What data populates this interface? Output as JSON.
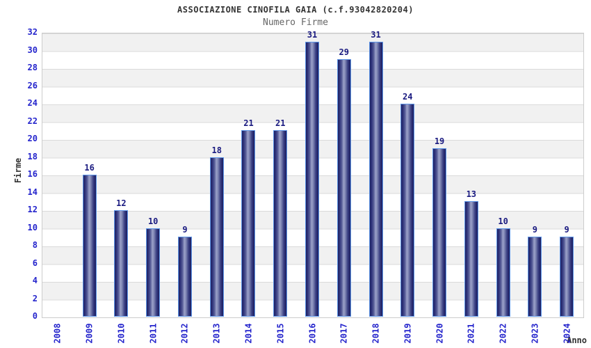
{
  "chart_data": {
    "type": "bar",
    "title": "ASSOCIAZIONE CINOFILA GAIA (c.f.93042820204)",
    "subtitle": "Numero Firme",
    "xlabel": "Anno",
    "ylabel": "Firme",
    "categories": [
      "2008",
      "2009",
      "2010",
      "2011",
      "2012",
      "2013",
      "2014",
      "2015",
      "2016",
      "2017",
      "2018",
      "2019",
      "2020",
      "2021",
      "2022",
      "2023",
      "2024"
    ],
    "values": [
      0,
      16,
      12,
      10,
      9,
      18,
      21,
      21,
      31,
      29,
      31,
      24,
      19,
      13,
      10,
      9,
      9
    ],
    "ylim": [
      0,
      32
    ],
    "ytick_step": 2,
    "grid": "horizontal gridlines with alternating gray/white bands",
    "legend": "none",
    "colors": {
      "bar_edge_dark": "#1f2262",
      "bar_center_light": "#9ba1c9",
      "bar_border": "#5e96e8",
      "value_label": "#1a1a80",
      "tick_label": "#2424cc",
      "title": "#333333",
      "subtitle": "#666666",
      "band_gray": "#f1f1f1",
      "gridline": "#dadada",
      "plot_border": "#cccccc"
    }
  }
}
